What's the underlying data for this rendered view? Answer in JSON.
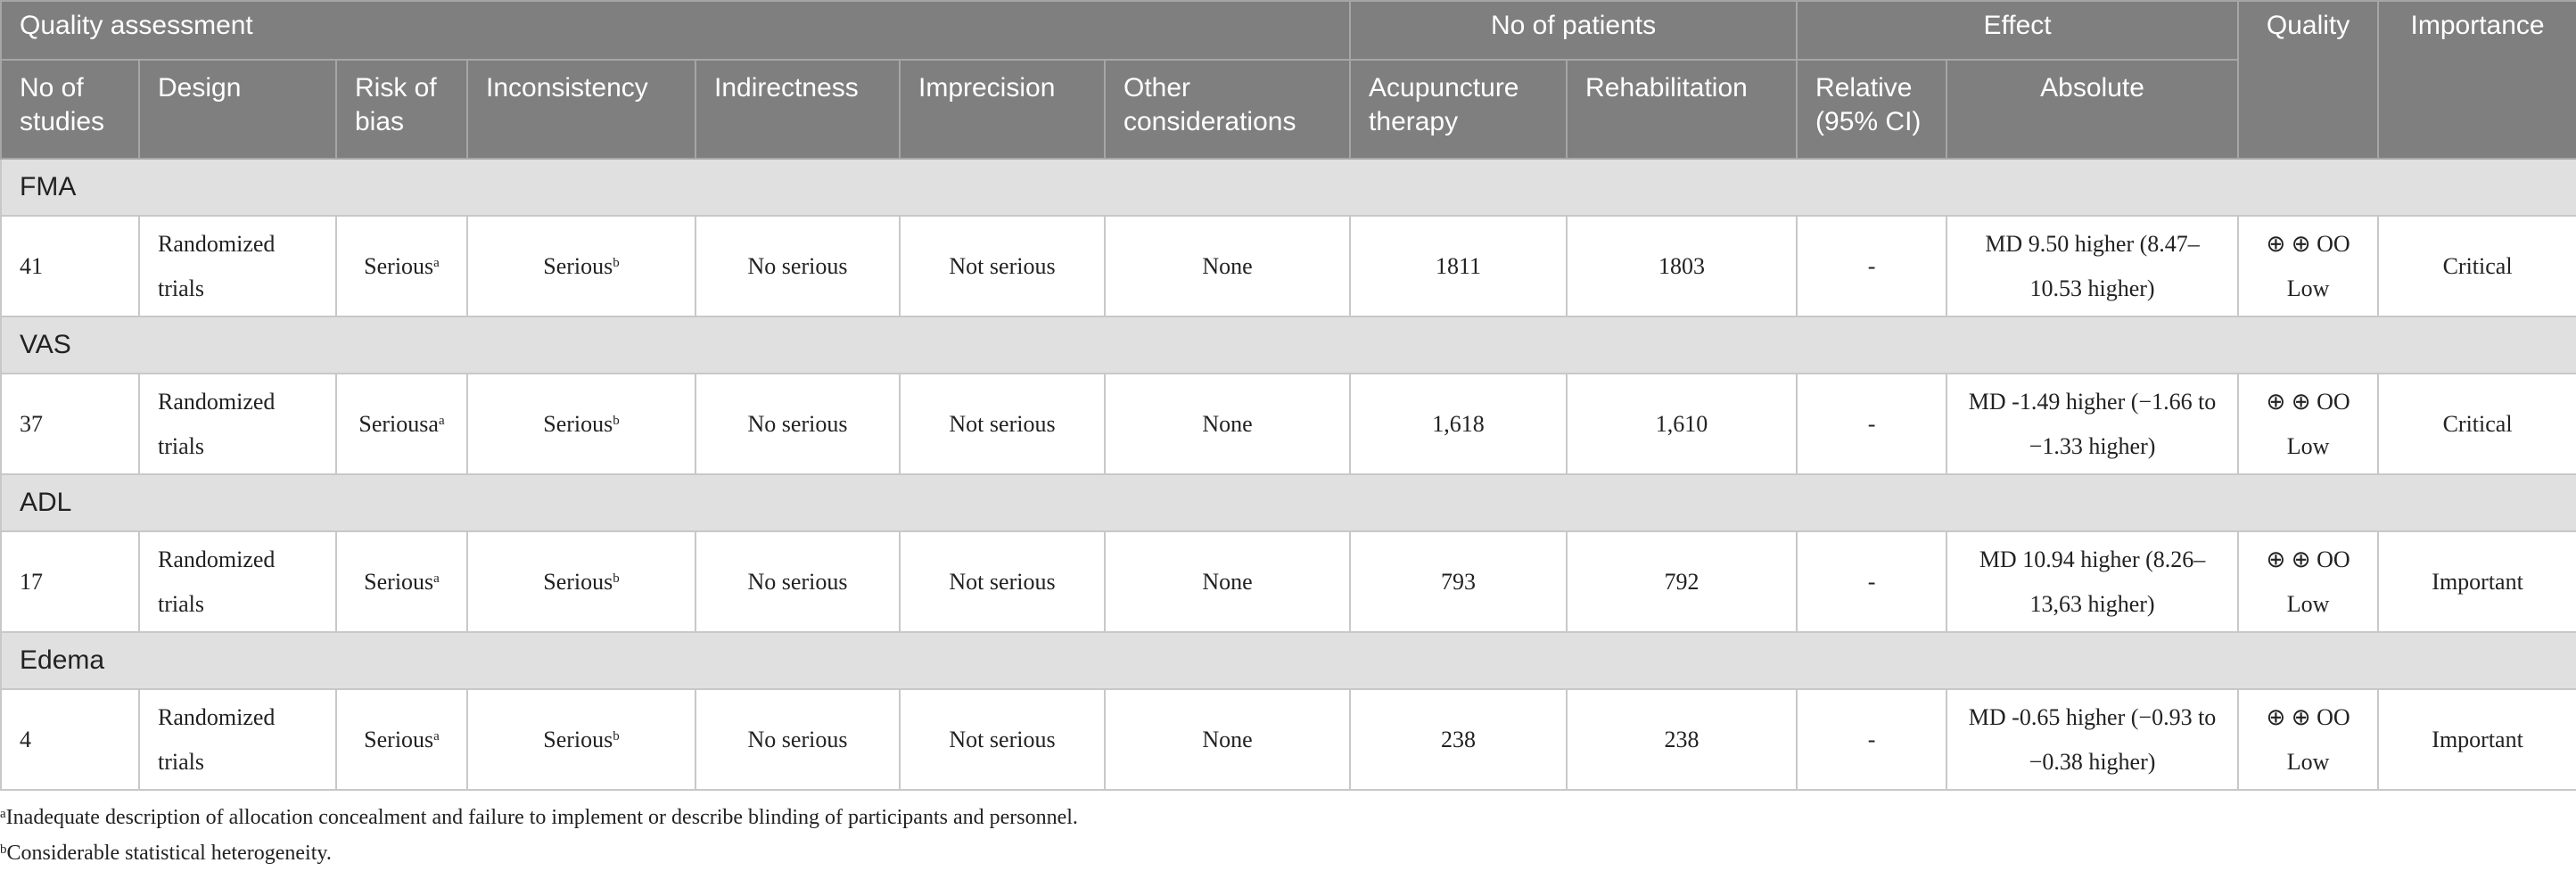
{
  "table": {
    "header_top": [
      {
        "text": "Quality assessment",
        "span": 7
      },
      {
        "text": "No of patients",
        "span": 2
      },
      {
        "text": "Effect",
        "span": 2
      },
      {
        "text": "Quality",
        "span": 1
      },
      {
        "text": "Importance",
        "span": 1
      }
    ],
    "header": [
      "No of studies",
      "Design",
      "Risk of bias",
      "Inconsistency",
      "Indirectness",
      "Imprecision",
      "Other considerations",
      "Acupuncture therapy",
      "Rehabilitation",
      "Relative (95% CI)",
      "Absolute"
    ],
    "groups": [
      {
        "label": "FMA",
        "row": [
          {
            "text": "41"
          },
          {
            "text": "Randomized trials"
          },
          {
            "text": "Serious",
            "sup": "a"
          },
          {
            "text": "Serious",
            "sup": "b"
          },
          {
            "text": "No serious"
          },
          {
            "text": "Not serious"
          },
          {
            "text": "None"
          },
          {
            "text": "1811"
          },
          {
            "text": "1803"
          },
          {
            "text": "-"
          },
          {
            "text": "MD 9.50 higher (8.47–10.53 higher)"
          },
          {
            "text": "⊕ ⊕ OO Low"
          },
          {
            "text": "Critical"
          }
        ]
      },
      {
        "label": "VAS",
        "row": [
          {
            "text": "37"
          },
          {
            "text": "Randomized trials"
          },
          {
            "text": "Seriousa",
            "sup": "a"
          },
          {
            "text": "Serious",
            "sup": "b"
          },
          {
            "text": "No serious"
          },
          {
            "text": "Not serious"
          },
          {
            "text": "None"
          },
          {
            "text": "1,618"
          },
          {
            "text": "1,610"
          },
          {
            "text": "-"
          },
          {
            "text": "MD -1.49 higher (−1.66 to −1.33 higher)"
          },
          {
            "text": "⊕ ⊕ OO Low"
          },
          {
            "text": "Critical"
          }
        ]
      },
      {
        "label": "ADL",
        "row": [
          {
            "text": "17"
          },
          {
            "text": "Randomized trials"
          },
          {
            "text": "Serious",
            "sup": "a"
          },
          {
            "text": "Serious",
            "sup": "b"
          },
          {
            "text": "No serious"
          },
          {
            "text": "Not serious"
          },
          {
            "text": "None"
          },
          {
            "text": "793"
          },
          {
            "text": "792"
          },
          {
            "text": "-"
          },
          {
            "text": "MD 10.94 higher (8.26–13,63 higher)"
          },
          {
            "text": "⊕ ⊕ OO Low"
          },
          {
            "text": "Important"
          }
        ]
      },
      {
        "label": "Edema",
        "row": [
          {
            "text": "4"
          },
          {
            "text": "Randomized trials"
          },
          {
            "text": "Serious",
            "sup": "a"
          },
          {
            "text": "Serious",
            "sup": "b"
          },
          {
            "text": "No serious"
          },
          {
            "text": "Not serious"
          },
          {
            "text": "None"
          },
          {
            "text": "238"
          },
          {
            "text": "238"
          },
          {
            "text": "-"
          },
          {
            "text": "MD -0.65 higher (−0.93 to −0.38 higher)"
          },
          {
            "text": "⊕ ⊕ OO Low"
          },
          {
            "text": "Important"
          }
        ]
      }
    ]
  },
  "footnotes": [
    {
      "sup": "a",
      "text": "Inadequate description of allocation concealment and failure to implement or describe blinding of participants and personnel."
    },
    {
      "sup": "b",
      "text": "Considerable statistical heterogeneity."
    }
  ]
}
